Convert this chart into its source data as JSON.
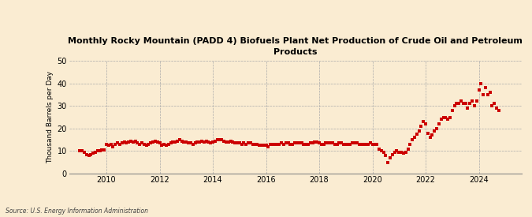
{
  "title": "Monthly Rocky Mountain (PADD 4) Biofuels Plant Net Production of Crude Oil and Petroleum\nProducts",
  "ylabel": "Thousand Barrels per Day",
  "source": "Source: U.S. Energy Information Administration",
  "background_color": "#faecd2",
  "plot_bg_color": "#faecd2",
  "line_color": "#cc0000",
  "marker": "s",
  "markersize": 2.2,
  "ylim": [
    0,
    50
  ],
  "yticks": [
    0,
    10,
    20,
    30,
    40,
    50
  ],
  "xlim_start": 2008.6,
  "xlim_end": 2025.6,
  "xticks": [
    2010,
    2012,
    2014,
    2016,
    2018,
    2020,
    2022,
    2024
  ],
  "data": {
    "2009-01": 10.0,
    "2009-02": 10.0,
    "2009-03": 9.5,
    "2009-04": 8.5,
    "2009-05": 8.0,
    "2009-06": 8.5,
    "2009-07": 9.0,
    "2009-08": 9.5,
    "2009-09": 10.0,
    "2009-10": 10.0,
    "2009-11": 10.5,
    "2009-12": 10.5,
    "2010-01": 13.0,
    "2010-02": 12.5,
    "2010-03": 13.0,
    "2010-04": 12.0,
    "2010-05": 13.0,
    "2010-06": 13.5,
    "2010-07": 13.0,
    "2010-08": 13.5,
    "2010-09": 14.0,
    "2010-10": 13.5,
    "2010-11": 14.0,
    "2010-12": 14.5,
    "2011-01": 14.0,
    "2011-02": 14.5,
    "2011-03": 13.5,
    "2011-04": 13.0,
    "2011-05": 13.5,
    "2011-06": 13.0,
    "2011-07": 12.5,
    "2011-08": 13.0,
    "2011-09": 13.5,
    "2011-10": 14.0,
    "2011-11": 14.5,
    "2011-12": 14.0,
    "2012-01": 13.5,
    "2012-02": 12.5,
    "2012-03": 13.0,
    "2012-04": 12.5,
    "2012-05": 13.0,
    "2012-06": 13.5,
    "2012-07": 14.0,
    "2012-08": 14.0,
    "2012-09": 14.5,
    "2012-10": 15.0,
    "2012-11": 14.5,
    "2012-12": 14.0,
    "2013-01": 14.0,
    "2013-02": 13.5,
    "2013-03": 13.5,
    "2013-04": 13.0,
    "2013-05": 13.5,
    "2013-06": 14.0,
    "2013-07": 14.0,
    "2013-08": 14.5,
    "2013-09": 14.0,
    "2013-10": 14.5,
    "2013-11": 14.0,
    "2013-12": 13.5,
    "2014-01": 14.0,
    "2014-02": 14.5,
    "2014-03": 15.0,
    "2014-04": 15.0,
    "2014-05": 15.0,
    "2014-06": 14.5,
    "2014-07": 14.0,
    "2014-08": 14.0,
    "2014-09": 14.5,
    "2014-10": 14.0,
    "2014-11": 13.5,
    "2014-12": 13.5,
    "2015-01": 13.5,
    "2015-02": 13.0,
    "2015-03": 13.5,
    "2015-04": 13.0,
    "2015-05": 13.5,
    "2015-06": 13.5,
    "2015-07": 13.0,
    "2015-08": 13.0,
    "2015-09": 13.0,
    "2015-10": 12.5,
    "2015-11": 12.5,
    "2015-12": 12.5,
    "2016-01": 12.5,
    "2016-02": 12.0,
    "2016-03": 13.0,
    "2016-04": 13.0,
    "2016-05": 13.0,
    "2016-06": 13.0,
    "2016-07": 13.0,
    "2016-08": 13.5,
    "2016-09": 13.0,
    "2016-10": 13.5,
    "2016-11": 13.5,
    "2016-12": 13.0,
    "2017-01": 13.0,
    "2017-02": 13.5,
    "2017-03": 13.5,
    "2017-04": 13.5,
    "2017-05": 13.5,
    "2017-06": 13.0,
    "2017-07": 13.0,
    "2017-08": 13.0,
    "2017-09": 13.5,
    "2017-10": 13.5,
    "2017-11": 14.0,
    "2017-12": 14.0,
    "2018-01": 13.5,
    "2018-02": 13.0,
    "2018-03": 13.0,
    "2018-04": 13.5,
    "2018-05": 13.5,
    "2018-06": 13.5,
    "2018-07": 13.5,
    "2018-08": 13.0,
    "2018-09": 13.0,
    "2018-10": 13.5,
    "2018-11": 13.5,
    "2018-12": 13.0,
    "2019-01": 13.0,
    "2019-02": 13.0,
    "2019-03": 13.0,
    "2019-04": 13.5,
    "2019-05": 13.5,
    "2019-06": 13.5,
    "2019-07": 13.0,
    "2019-08": 13.0,
    "2019-09": 13.0,
    "2019-10": 13.0,
    "2019-11": 13.0,
    "2019-12": 13.5,
    "2020-01": 13.0,
    "2020-02": 13.0,
    "2020-03": 13.0,
    "2020-04": 11.0,
    "2020-05": 10.0,
    "2020-06": 9.5,
    "2020-07": 8.0,
    "2020-08": 5.0,
    "2020-09": 7.0,
    "2020-10": 8.5,
    "2020-11": 9.5,
    "2020-12": 10.0,
    "2021-01": 9.5,
    "2021-02": 9.5,
    "2021-03": 9.0,
    "2021-04": 9.5,
    "2021-05": 11.0,
    "2021-06": 13.0,
    "2021-07": 15.0,
    "2021-08": 16.0,
    "2021-09": 17.5,
    "2021-10": 19.0,
    "2021-11": 21.0,
    "2021-12": 23.0,
    "2022-01": 22.0,
    "2022-02": 18.0,
    "2022-03": 16.0,
    "2022-04": 17.0,
    "2022-05": 19.0,
    "2022-06": 20.0,
    "2022-07": 22.0,
    "2022-08": 24.0,
    "2022-09": 25.0,
    "2022-10": 25.0,
    "2022-11": 24.0,
    "2022-12": 25.0,
    "2023-01": 28.0,
    "2023-02": 30.0,
    "2023-03": 31.0,
    "2023-04": 31.0,
    "2023-05": 32.0,
    "2023-06": 31.0,
    "2023-07": 31.0,
    "2023-08": 29.0,
    "2023-09": 31.0,
    "2023-10": 32.0,
    "2023-11": 30.0,
    "2023-12": 32.0,
    "2024-01": 37.0,
    "2024-02": 40.0,
    "2024-03": 35.0,
    "2024-04": 38.0,
    "2024-05": 35.0,
    "2024-06": 36.0,
    "2024-07": 30.0,
    "2024-08": 31.0,
    "2024-09": 29.0,
    "2024-10": 28.0
  }
}
